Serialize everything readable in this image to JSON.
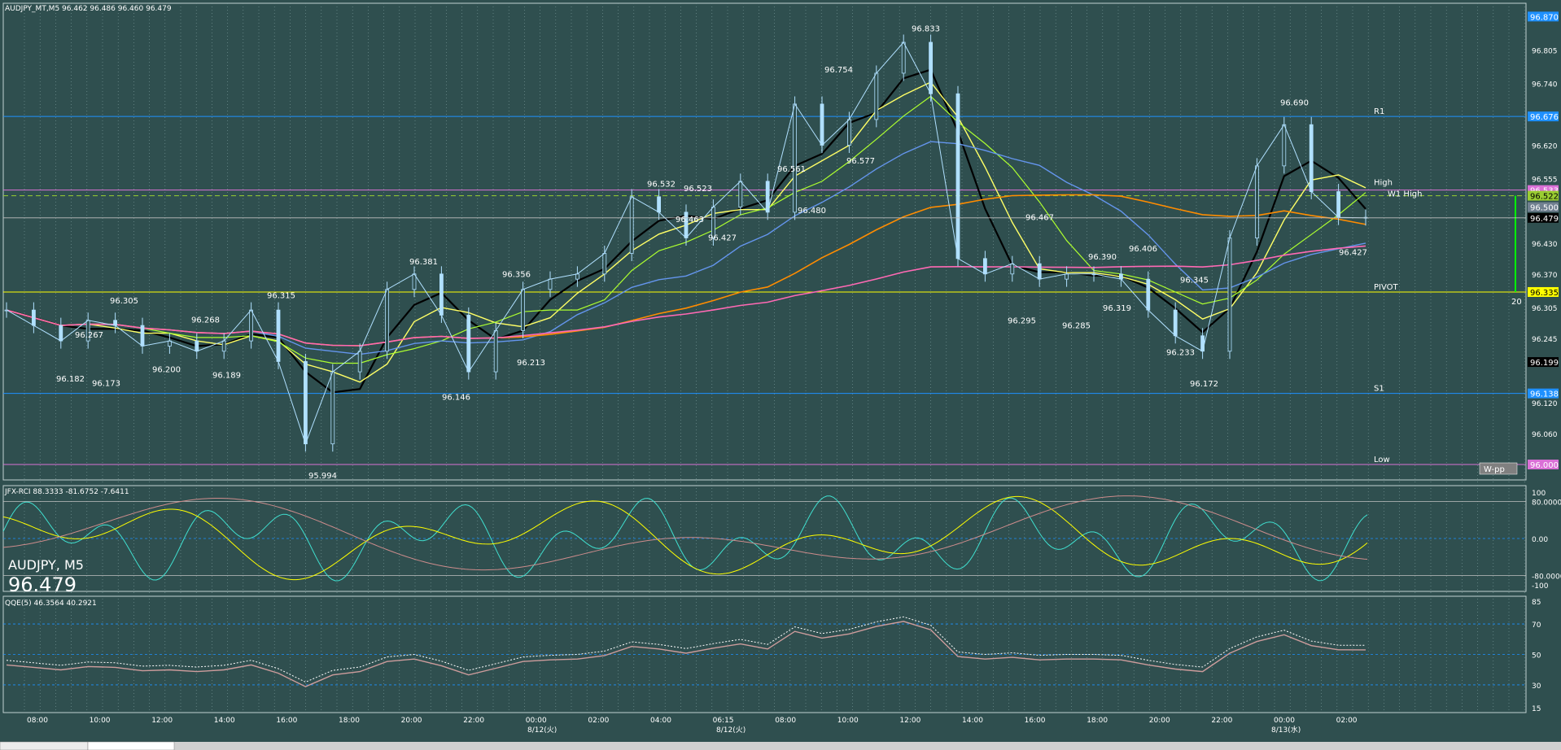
{
  "header": {
    "main": "AUDJPY_MT,M5  96.462 96.486 96.460 96.479",
    "rci": "JFX-RCI 88.3333 -81.6752 -7.6411",
    "qqe": "QQE(5) 46.3564 40.2921"
  },
  "overlay": {
    "symbol": "AUDJPY, M5",
    "price": "96.479"
  },
  "time_labels": [
    "08:00",
    "10:00",
    "12:00",
    "14:00",
    "16:00",
    "18:00",
    "20:00",
    "22:00",
    "00:00",
    "02:00",
    "04:00",
    "06:15",
    "08:00",
    "10:00",
    "12:00",
    "14:00",
    "16:00",
    "18:00",
    "20:00",
    "22:00",
    "00:00",
    "02:00"
  ],
  "date_labels": [
    "8/12(火)",
    "8/12(火)",
    "8/13(水)"
  ],
  "price_axis": [
    "96.805",
    "96.740",
    "96.620",
    "96.555",
    "96.430",
    "96.370",
    "96.305",
    "96.245",
    "96.120",
    "96.060"
  ],
  "price_tags": [
    {
      "text": "96.870",
      "color": "#1e90ff"
    },
    {
      "text": "96.676",
      "color": "#1e90ff"
    },
    {
      "text": "96.533",
      "color": "#da70d6"
    },
    {
      "text": "96.522",
      "color": "#9acd32"
    },
    {
      "text": "96.500",
      "color": "#708090"
    },
    {
      "text": "96.479",
      "color": "#000000"
    },
    {
      "text": "96.335",
      "color": "#ffff00"
    },
    {
      "text": "96.199",
      "color": "#000000"
    },
    {
      "text": "96.138",
      "color": "#1e90ff"
    },
    {
      "text": "96.000",
      "color": "#da70d6"
    }
  ],
  "level_labels": {
    "r1": "R1",
    "high": "High",
    "w1high": "W1 High",
    "pivot": "PIVOT",
    "s1": "S1",
    "low": "Low",
    "wpp": "W-pp",
    "bar20": "20"
  },
  "rci_axis": [
    "100",
    "80.0000",
    "0.00",
    "-80.0000",
    "-100"
  ],
  "qqe_axis": [
    "85",
    "70",
    "50",
    "30",
    "15"
  ],
  "colors": {
    "bg": "#2f4f4f",
    "candle": "#b0e0ff",
    "grid": "#6a8a8a"
  },
  "chart_data": {
    "type": "line",
    "title": "AUDJPY_MT,M5",
    "symbol": "AUDJPY",
    "timeframe": "M5",
    "ohlc_last": {
      "open": 96.462,
      "high": 96.486,
      "low": 96.46,
      "close": 96.479
    },
    "ylim": [
      95.97,
      96.88
    ],
    "x": [
      "07:00",
      "08:00",
      "09:00",
      "10:00",
      "11:00",
      "12:00",
      "13:00",
      "14:00",
      "15:00",
      "16:00",
      "16:30",
      "17:00",
      "18:00",
      "19:00",
      "20:00",
      "20:30",
      "21:00",
      "22:00",
      "23:00",
      "00:00",
      "01:00",
      "02:00",
      "03:00",
      "04:00",
      "05:00",
      "06:15",
      "07:00",
      "08:00",
      "08:30",
      "09:00",
      "10:00",
      "11:00",
      "12:00",
      "12:30",
      "13:00",
      "14:00",
      "15:00",
      "16:00",
      "17:00",
      "18:00",
      "19:00",
      "20:00",
      "21:00",
      "22:00",
      "22:30",
      "23:00",
      "00:00",
      "00:20",
      "01:00",
      "02:00",
      "02:40"
    ],
    "series": [
      {
        "name": "AUDJPY",
        "values": [
          96.3,
          96.27,
          96.24,
          96.28,
          96.27,
          96.23,
          96.24,
          96.22,
          96.24,
          96.3,
          96.2,
          96.04,
          96.18,
          96.22,
          96.34,
          96.37,
          96.29,
          96.18,
          96.26,
          96.34,
          96.36,
          96.37,
          96.41,
          96.52,
          96.49,
          96.44,
          96.5,
          96.55,
          96.49,
          96.7,
          96.62,
          96.67,
          96.76,
          96.82,
          96.72,
          96.4,
          96.37,
          96.39,
          96.36,
          96.37,
          96.37,
          96.36,
          96.3,
          96.25,
          96.22,
          96.44,
          96.58,
          96.66,
          96.53,
          96.48,
          96.479
        ]
      }
    ],
    "annotations": [
      "96.833",
      "96.754",
      "96.532",
      "96.523",
      "96.561",
      "96.577",
      "96.480",
      "96.463",
      "96.427",
      "96.381",
      "96.356",
      "96.305",
      "96.315",
      "96.267",
      "96.268",
      "96.182",
      "96.173",
      "96.200",
      "96.189",
      "96.213",
      "96.146",
      "95.994",
      "96.467",
      "96.390",
      "96.406",
      "96.295",
      "96.285",
      "96.319",
      "96.345",
      "96.233",
      "96.172",
      "96.690",
      "96.427"
    ],
    "levels": [
      {
        "name": "R1",
        "value": 96.676
      },
      {
        "name": "High",
        "value": 96.533
      },
      {
        "name": "W1 High",
        "value": 96.522
      },
      {
        "name": "PIVOT",
        "value": 96.335
      },
      {
        "name": "S1",
        "value": 96.138
      },
      {
        "name": "Low",
        "value": 96.0
      }
    ],
    "rci": {
      "name": "JFX-RCI",
      "ylim": [
        -100,
        100
      ],
      "values": [
        88.3333,
        -81.6752,
        -7.6411
      ]
    },
    "qqe": {
      "name": "QQE(5)",
      "ylim": [
        15,
        85
      ],
      "values": [
        46.3564,
        40.2921
      ]
    }
  }
}
